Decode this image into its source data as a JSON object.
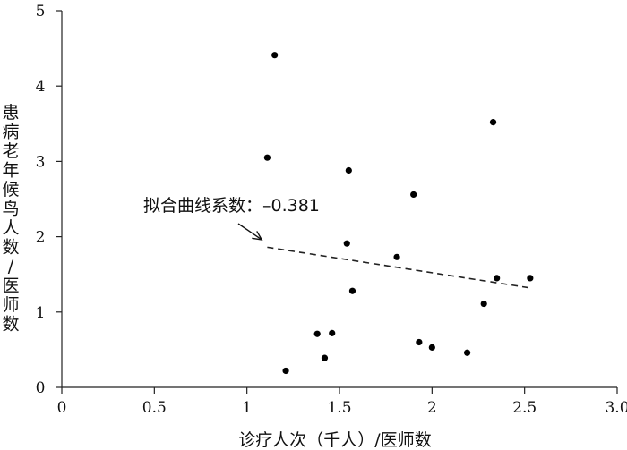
{
  "chart_data": {
    "type": "scatter",
    "xlabel": "诊疗人次（千人）/医师数",
    "ylabel": "患病老年候鸟人数/医师数",
    "xlim": [
      0,
      3.0
    ],
    "ylim": [
      0,
      5
    ],
    "x_ticks": [
      0,
      0.5,
      1,
      1.5,
      2,
      2.5,
      3.0
    ],
    "x_tick_labels": [
      "0",
      "0.5",
      "1",
      "1.5",
      "2",
      "2.5",
      "3.0"
    ],
    "y_ticks": [
      0,
      1,
      2,
      3,
      4,
      5
    ],
    "y_tick_labels": [
      "0",
      "1",
      "2",
      "3",
      "4",
      "5"
    ],
    "grid": false,
    "points": [
      {
        "x": 1.15,
        "y": 4.41
      },
      {
        "x": 1.11,
        "y": 3.05
      },
      {
        "x": 1.21,
        "y": 0.22
      },
      {
        "x": 1.38,
        "y": 0.71
      },
      {
        "x": 1.42,
        "y": 0.39
      },
      {
        "x": 1.46,
        "y": 0.72
      },
      {
        "x": 1.54,
        "y": 1.91
      },
      {
        "x": 1.55,
        "y": 2.88
      },
      {
        "x": 1.57,
        "y": 1.28
      },
      {
        "x": 1.81,
        "y": 1.73
      },
      {
        "x": 1.9,
        "y": 2.56
      },
      {
        "x": 1.93,
        "y": 0.6
      },
      {
        "x": 2.0,
        "y": 0.53
      },
      {
        "x": 2.19,
        "y": 0.46
      },
      {
        "x": 2.28,
        "y": 1.11
      },
      {
        "x": 2.33,
        "y": 3.52
      },
      {
        "x": 2.35,
        "y": 1.45
      },
      {
        "x": 2.53,
        "y": 1.45
      }
    ],
    "fit_line": {
      "x": [
        1.11,
        2.53
      ],
      "y": [
        1.86,
        1.32
      ],
      "style": "dashed"
    },
    "annotation": {
      "text": "拟合曲线系数：–0.381",
      "arrow_to": {
        "x": 1.08,
        "y": 1.96
      }
    }
  }
}
